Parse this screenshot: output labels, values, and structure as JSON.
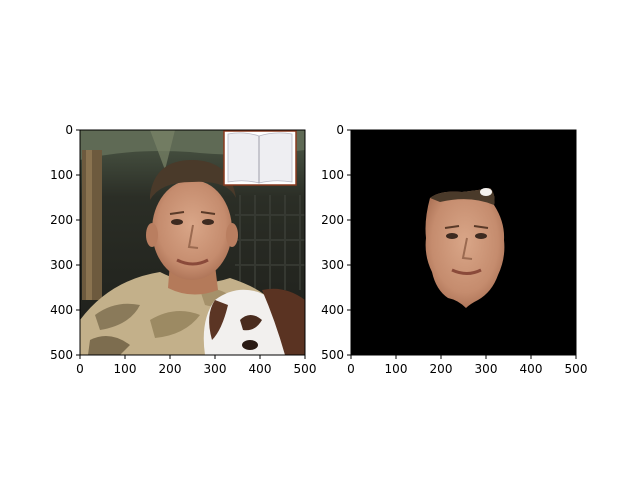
{
  "chart_data": [
    {
      "type": "image",
      "name": "original-photo",
      "xlim": [
        0,
        500
      ],
      "ylim": [
        500,
        0
      ],
      "xticks": [
        0,
        100,
        200,
        300,
        400,
        500
      ],
      "yticks": [
        0,
        100,
        200,
        300,
        400,
        500
      ],
      "xlabel": "",
      "ylabel": "",
      "title": "",
      "grid": false
    },
    {
      "type": "image",
      "name": "face-segmentation",
      "xlim": [
        0,
        500
      ],
      "ylim": [
        500,
        0
      ],
      "xticks": [
        0,
        100,
        200,
        300,
        400,
        500
      ],
      "yticks": [
        0,
        100,
        200,
        300,
        400,
        500
      ],
      "xlabel": "",
      "ylabel": "",
      "title": "",
      "grid": false
    }
  ]
}
